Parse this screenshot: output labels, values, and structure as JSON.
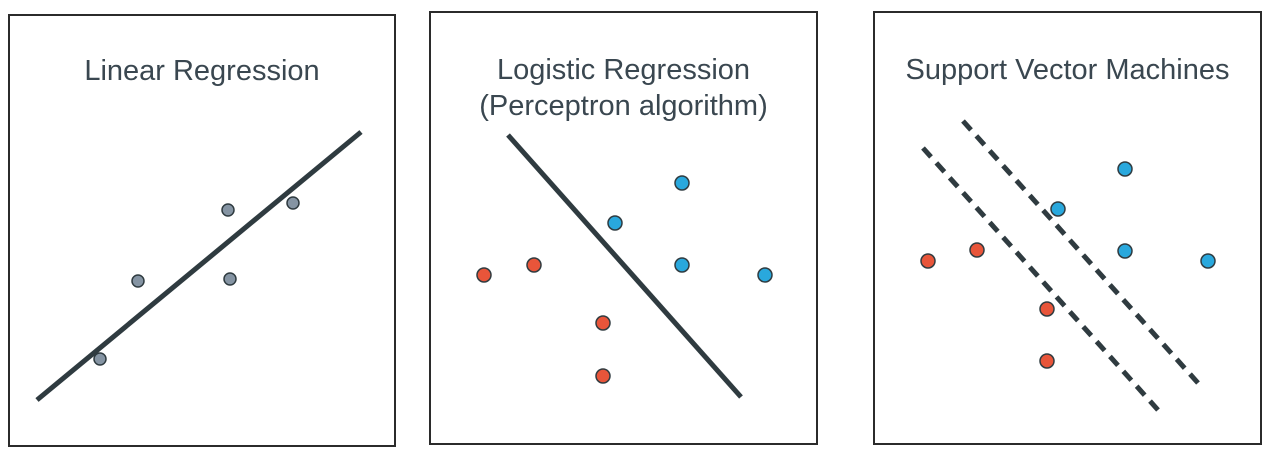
{
  "panels": [
    {
      "title": "Linear Regression",
      "line_color": "#2f3b40",
      "point_color": "#8594a3"
    },
    {
      "title": "Logistic Regression",
      "subtitle": "(Perceptron algorithm)",
      "line_color": "#2f3b40",
      "class_a_color": "#e8553a",
      "class_b_color": "#29a8dd"
    },
    {
      "title": "Support Vector Machines",
      "line_style": "dashed",
      "line_color": "#2f3b40",
      "class_a_color": "#e8553a",
      "class_b_color": "#29a8dd"
    }
  ]
}
